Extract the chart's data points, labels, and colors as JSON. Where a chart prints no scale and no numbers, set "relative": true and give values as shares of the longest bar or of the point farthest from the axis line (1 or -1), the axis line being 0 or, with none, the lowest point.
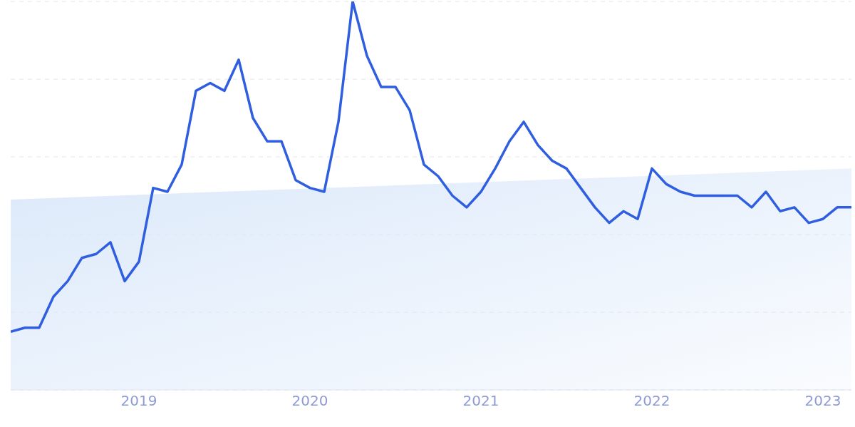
{
  "chart_data": {
    "type": "line",
    "relative": true,
    "grid": "y",
    "x": [
      "2018-04",
      "2018-05",
      "2018-06",
      "2018-07",
      "2018-08",
      "2018-09",
      "2018-10",
      "2018-11",
      "2018-12",
      "2019-01",
      "2019-02",
      "2019-03",
      "2019-04",
      "2019-05",
      "2019-06",
      "2019-07",
      "2019-08",
      "2019-09",
      "2019-10",
      "2019-11",
      "2019-12",
      "2020-01",
      "2020-02",
      "2020-03",
      "2020-04",
      "2020-05",
      "2020-06",
      "2020-07",
      "2020-08",
      "2020-09",
      "2020-10",
      "2020-11",
      "2020-12",
      "2021-01",
      "2021-02",
      "2021-03",
      "2021-04",
      "2021-05",
      "2021-06",
      "2021-07",
      "2021-08",
      "2021-09",
      "2021-10",
      "2021-11",
      "2021-12",
      "2022-01",
      "2022-02",
      "2022-03",
      "2022-04",
      "2022-05",
      "2022-06",
      "2022-07",
      "2022-08",
      "2022-09",
      "2022-10",
      "2022-11",
      "2022-12",
      "2023-01",
      "2023-02",
      "2023-03"
    ],
    "xlim": [
      "2018-04",
      "2023-03"
    ],
    "xticks": [
      {
        "value": "2019",
        "label": "2019"
      },
      {
        "value": "2020",
        "label": "2020"
      },
      {
        "value": "2021",
        "label": "2021"
      },
      {
        "value": "2022",
        "label": "2022"
      },
      {
        "value": "2023",
        "label": "2023"
      }
    ],
    "series": [
      {
        "type": "area",
        "color": "#dce9fa",
        "x": [
          "2018-04",
          "2023-03"
        ],
        "values": [
          0.49,
          0.57
        ]
      },
      {
        "color": "#2f5fe0",
        "values": [
          0.15,
          0.16,
          0.16,
          0.24,
          0.28,
          0.34,
          0.35,
          0.38,
          0.28,
          0.33,
          0.52,
          0.51,
          0.58,
          0.77,
          0.79,
          0.77,
          0.85,
          0.7,
          0.64,
          0.64,
          0.54,
          0.52,
          0.51,
          0.69,
          1,
          0.86,
          0.78,
          0.78,
          0.72,
          0.58,
          0.55,
          0.5,
          0.47,
          0.51,
          0.57,
          0.64,
          0.69,
          0.63,
          0.59,
          0.57,
          0.52,
          0.47,
          0.43,
          0.46,
          0.44,
          0.57,
          0.53,
          0.51,
          0.5,
          0.5,
          0.5,
          0.5,
          0.47,
          0.51,
          0.46,
          0.47,
          0.43,
          0.44,
          0.47,
          0.47
        ]
      }
    ]
  }
}
